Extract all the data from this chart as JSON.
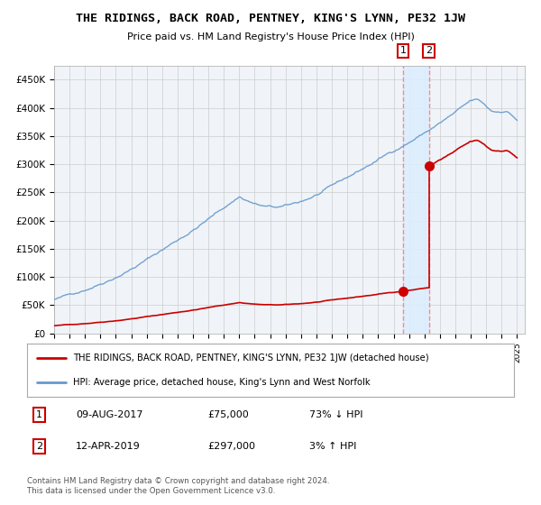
{
  "title": "THE RIDINGS, BACK ROAD, PENTNEY, KING'S LYNN, PE32 1JW",
  "subtitle": "Price paid vs. HM Land Registry's House Price Index (HPI)",
  "legend_line1": "THE RIDINGS, BACK ROAD, PENTNEY, KING'S LYNN, PE32 1JW (detached house)",
  "legend_line2": "HPI: Average price, detached house, King's Lynn and West Norfolk",
  "copyright": "Contains HM Land Registry data © Crown copyright and database right 2024.\nThis data is licensed under the Open Government Licence v3.0.",
  "transactions": [
    {
      "num": 1,
      "date": "09-AUG-2017",
      "price": "£75,000",
      "hpi": "73% ↓ HPI",
      "year": 2017.61,
      "price_val": 75000
    },
    {
      "num": 2,
      "date": "12-APR-2019",
      "price": "£297,000",
      "hpi": "3% ↑ HPI",
      "year": 2019.28,
      "price_val": 297000
    }
  ],
  "ylim": [
    0,
    475000
  ],
  "xlim_start": 1995,
  "xlim_end": 2025.5,
  "yticks": [
    0,
    50000,
    100000,
    150000,
    200000,
    250000,
    300000,
    350000,
    400000,
    450000
  ],
  "ytick_labels": [
    "£0",
    "£50K",
    "£100K",
    "£150K",
    "£200K",
    "£250K",
    "£300K",
    "£350K",
    "£400K",
    "£450K"
  ],
  "background_color": "#f0f4f8",
  "grid_color": "#cccccc",
  "hpi_line_color": "#6699cc",
  "price_line_color": "#cc0000",
  "vline_color": "#ff8888",
  "highlight_color": "#ddeeff",
  "marker_color": "#cc0000",
  "marker_size": 7
}
